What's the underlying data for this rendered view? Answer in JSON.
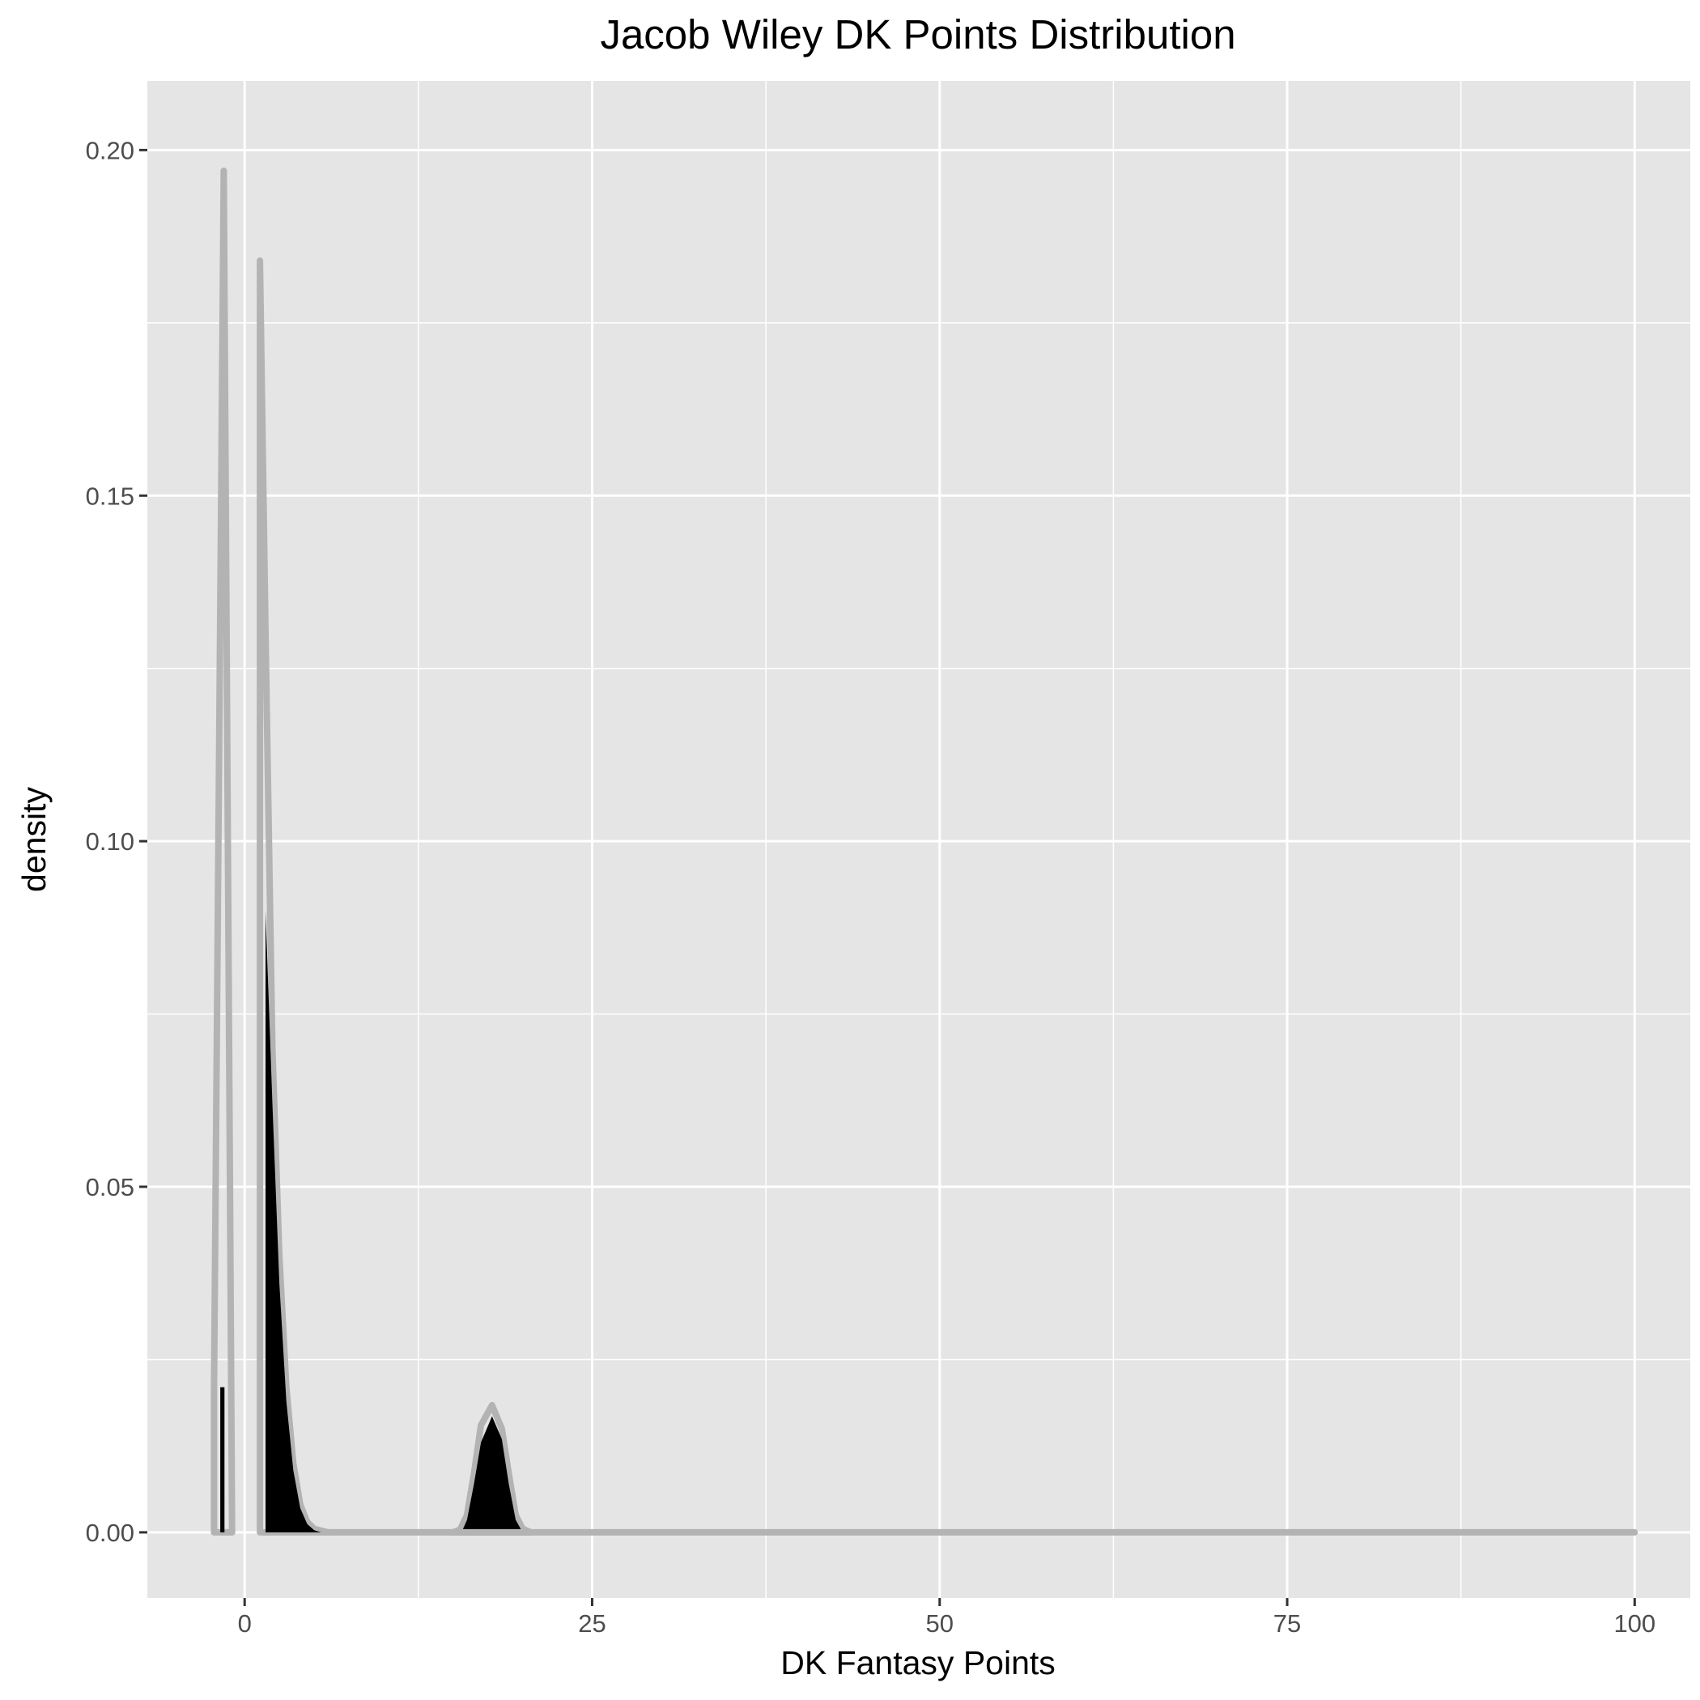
{
  "chart_data": {
    "type": "area",
    "title": "Jacob Wiley DK Points Distribution",
    "xlabel": "DK Fantasy Points",
    "ylabel": "density",
    "xlim": [
      -7,
      104
    ],
    "ylim": [
      -0.0095,
      0.21
    ],
    "x_ticks": [
      0,
      25,
      50,
      75,
      100
    ],
    "x_tick_labels": [
      "0",
      "25",
      "50",
      "75",
      "100"
    ],
    "x_minor_ticks": [
      12.5,
      37.5,
      62.5,
      87.5
    ],
    "y_ticks": [
      0,
      0.05,
      0.1,
      0.15,
      0.2
    ],
    "y_tick_labels": [
      "0.00",
      "0.05",
      "0.10",
      "0.15",
      "0.20"
    ],
    "y_minor_ticks": [
      0.025,
      0.075,
      0.125,
      0.175
    ],
    "grid": true,
    "colors": {
      "panel_background": "#e5e5e5",
      "grid_line": "#ffffff",
      "density_fill": "#000000",
      "density_outline": "#b3b3b3",
      "axis_tick": "#333333",
      "tick_text": "#4d4d4d"
    },
    "series": [
      {
        "values_outline": [
          [
            -2.2,
            0
          ],
          [
            -2.2,
            0.021
          ],
          [
            -1.5,
            0.197
          ],
          [
            -0.9,
            0.0
          ],
          [
            -0.9,
            0
          ]
        ],
        "values_fill": [
          [
            -1.75,
            0
          ],
          [
            -1.75,
            0.021
          ],
          [
            -1.45,
            0.021
          ],
          [
            -1.45,
            0
          ]
        ]
      },
      {
        "values_outline": [
          [
            1.1,
            0
          ],
          [
            1.1,
            0.184
          ],
          [
            1.5,
            0.13
          ],
          [
            2.0,
            0.07
          ],
          [
            2.5,
            0.04
          ],
          [
            3.0,
            0.021
          ],
          [
            3.5,
            0.01
          ],
          [
            4.0,
            0.004
          ],
          [
            4.5,
            0.0015
          ],
          [
            5.0,
            0.0005
          ],
          [
            6.0,
            0
          ]
        ],
        "values_fill": [
          [
            1.5,
            0
          ],
          [
            1.5,
            0.09
          ],
          [
            2.0,
            0.062
          ],
          [
            2.5,
            0.036
          ],
          [
            3.0,
            0.019
          ],
          [
            3.5,
            0.009
          ],
          [
            4.0,
            0.0035
          ],
          [
            4.5,
            0.0012
          ],
          [
            5.0,
            0.0003
          ],
          [
            5.5,
            0
          ]
        ]
      },
      {
        "values_outline": [
          [
            15.0,
            0
          ],
          [
            15.5,
            0.0004
          ],
          [
            16.0,
            0.0025
          ],
          [
            16.5,
            0.0085
          ],
          [
            17.0,
            0.0155
          ],
          [
            17.8,
            0.0184
          ],
          [
            18.5,
            0.015
          ],
          [
            19.0,
            0.0085
          ],
          [
            19.5,
            0.0025
          ],
          [
            20.0,
            0.0005
          ],
          [
            20.6,
            0
          ]
        ],
        "values_fill": [
          [
            15.6,
            0
          ],
          [
            16.0,
            0.0018
          ],
          [
            16.5,
            0.007
          ],
          [
            17.0,
            0.013
          ],
          [
            17.8,
            0.0168
          ],
          [
            18.5,
            0.0135
          ],
          [
            19.0,
            0.007
          ],
          [
            19.5,
            0.0018
          ],
          [
            20.0,
            0
          ]
        ]
      },
      {
        "values_outline": [
          [
            6.0,
            0
          ],
          [
            100,
            0
          ]
        ]
      }
    ]
  }
}
